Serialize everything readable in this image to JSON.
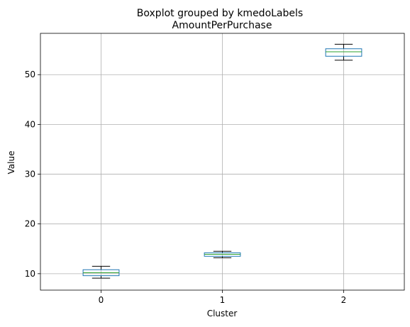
{
  "chart_data": {
    "type": "box",
    "suptitle": "Boxplot grouped by kmedoLabels",
    "title": "AmountPerPurchase",
    "xlabel": "Cluster",
    "ylabel": "Value",
    "categories": [
      "0",
      "1",
      "2"
    ],
    "ylim": [
      6.7,
      58.3
    ],
    "yticks": [
      10,
      20,
      30,
      40,
      50
    ],
    "grid": true,
    "boxes": [
      {
        "category": "0",
        "whisker_low": 9.1,
        "q1": 9.6,
        "median": 10.2,
        "q3": 10.8,
        "whisker_high": 11.5
      },
      {
        "category": "1",
        "whisker_low": 13.2,
        "q1": 13.5,
        "median": 13.9,
        "q3": 14.2,
        "whisker_high": 14.5
      },
      {
        "category": "2",
        "whisker_low": 52.9,
        "q1": 53.7,
        "median": 54.6,
        "q3": 55.2,
        "whisker_high": 56.1
      }
    ],
    "colors": {
      "box": "#1f77b4",
      "median": "#2ca02c",
      "whisker": "#000000",
      "grid": "#b0b0b0",
      "axes": "#000000"
    }
  }
}
